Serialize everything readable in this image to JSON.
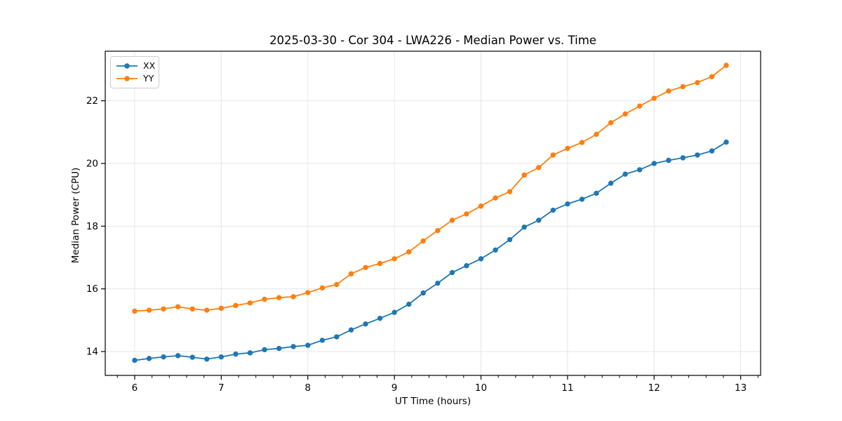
{
  "chart_data": {
    "type": "line",
    "title": "2025-03-30 - Cor 304 - LWA226 - Median Power vs. Time",
    "xlabel": "UT Time (hours)",
    "ylabel": "Median Power (CPU)",
    "legend_position": "upper left",
    "grid": "major",
    "grid_color": "#e6e6e6",
    "spine_color": "#000000",
    "background": "#ffffff",
    "xlim": [
      5.66,
      13.23
    ],
    "ylim": [
      13.24,
      23.58
    ],
    "xticks": [
      6,
      7,
      8,
      9,
      10,
      11,
      12,
      13
    ],
    "yticks": [
      14,
      16,
      18,
      20,
      22
    ],
    "x_minor_tick_step": 0.2,
    "x": [
      6.0,
      6.167,
      6.333,
      6.5,
      6.667,
      6.833,
      7.0,
      7.167,
      7.333,
      7.5,
      7.667,
      7.833,
      8.0,
      8.167,
      8.333,
      8.5,
      8.667,
      8.833,
      9.0,
      9.167,
      9.333,
      9.5,
      9.667,
      9.833,
      10.0,
      10.167,
      10.333,
      10.5,
      10.667,
      10.833,
      11.0,
      11.167,
      11.333,
      11.5,
      11.667,
      11.833,
      12.0,
      12.167,
      12.333,
      12.5,
      12.667,
      12.833
    ],
    "series": [
      {
        "name": "XX",
        "color": "#1f77b4",
        "marker": "circle",
        "values": [
          13.72,
          13.78,
          13.83,
          13.87,
          13.82,
          13.76,
          13.83,
          13.92,
          13.96,
          14.06,
          14.1,
          14.16,
          14.2,
          14.36,
          14.47,
          14.69,
          14.88,
          15.06,
          15.25,
          15.51,
          15.87,
          16.18,
          16.52,
          16.74,
          16.96,
          17.24,
          17.57,
          17.97,
          18.19,
          18.51,
          18.71,
          18.86,
          19.05,
          19.37,
          19.66,
          19.8,
          20.0,
          20.1,
          20.18,
          20.27,
          20.4,
          20.68
        ]
      },
      {
        "name": "YY",
        "color": "#ff7f0e",
        "marker": "circle",
        "values": [
          15.29,
          15.32,
          15.36,
          15.43,
          15.36,
          15.32,
          15.38,
          15.47,
          15.55,
          15.67,
          15.72,
          15.75,
          15.88,
          16.03,
          16.14,
          16.48,
          16.68,
          16.81,
          16.96,
          17.18,
          17.53,
          17.86,
          18.19,
          18.39,
          18.64,
          18.9,
          19.1,
          19.63,
          19.87,
          20.27,
          20.48,
          20.67,
          20.93,
          21.3,
          21.58,
          21.83,
          22.08,
          22.31,
          22.45,
          22.58,
          22.77,
          23.13
        ]
      }
    ]
  }
}
